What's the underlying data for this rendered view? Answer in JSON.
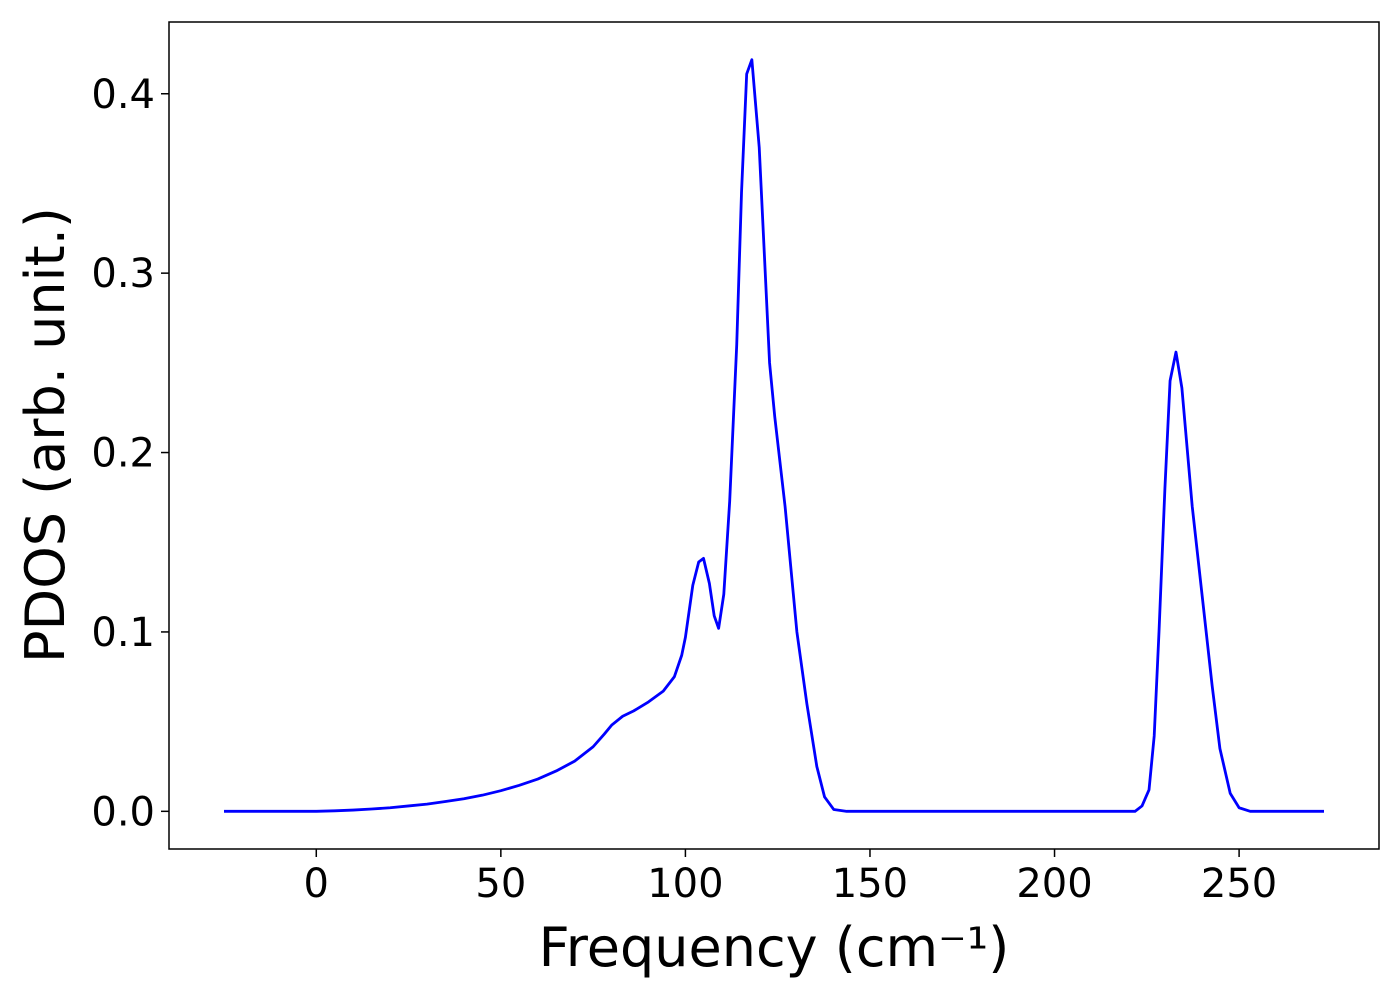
{
  "chart_data": {
    "type": "line",
    "xlabel": "Frequency (cm⁻¹)",
    "ylabel": "PDOS (arb. unit.)",
    "x": [
      -25,
      0,
      5,
      10,
      15,
      20,
      25,
      30,
      35,
      40,
      45,
      50,
      55,
      60,
      65,
      70,
      75,
      78,
      80,
      83,
      86,
      90,
      94,
      97,
      99,
      100,
      102,
      103.6,
      104.9,
      106.5,
      107.8,
      109,
      110.4,
      112,
      113.9,
      115.2,
      116.6,
      118,
      120,
      122.8,
      124.2,
      127,
      130.2,
      132.9,
      135.6,
      137.7,
      140.2,
      143.7,
      150,
      200,
      221.8,
      223.7,
      225.6,
      227,
      228.3,
      229.9,
      231.3,
      232.9,
      234.5,
      237.3,
      240,
      242.7,
      244.8,
      247.6,
      250,
      253,
      273
    ],
    "values": [
      0,
      0,
      0.0003,
      0.0007,
      0.0013,
      0.002,
      0.003,
      0.004,
      0.0055,
      0.007,
      0.009,
      0.0115,
      0.0145,
      0.018,
      0.0225,
      0.028,
      0.036,
      0.043,
      0.048,
      0.053,
      0.056,
      0.061,
      0.067,
      0.075,
      0.087,
      0.097,
      0.126,
      0.139,
      0.141,
      0.127,
      0.109,
      0.102,
      0.121,
      0.173,
      0.26,
      0.345,
      0.411,
      0.419,
      0.37,
      0.25,
      0.22,
      0.17,
      0.1,
      0.06,
      0.025,
      0.008,
      0.001,
      0,
      0,
      0,
      0,
      0.003,
      0.012,
      0.042,
      0.1,
      0.18,
      0.24,
      0.256,
      0.236,
      0.17,
      0.12,
      0.07,
      0.035,
      0.01,
      0.002,
      0,
      0
    ],
    "color": "#0000ff",
    "xlim": [
      -39.9,
      287.9
    ],
    "ylim": [
      -0.021,
      0.44
    ],
    "xticks": [
      0,
      50,
      100,
      150,
      200,
      250
    ],
    "yticks": [
      {
        "value": 0,
        "label": "0.0"
      },
      0.1,
      0.2,
      0.3,
      0.4
    ],
    "grid": false
  }
}
